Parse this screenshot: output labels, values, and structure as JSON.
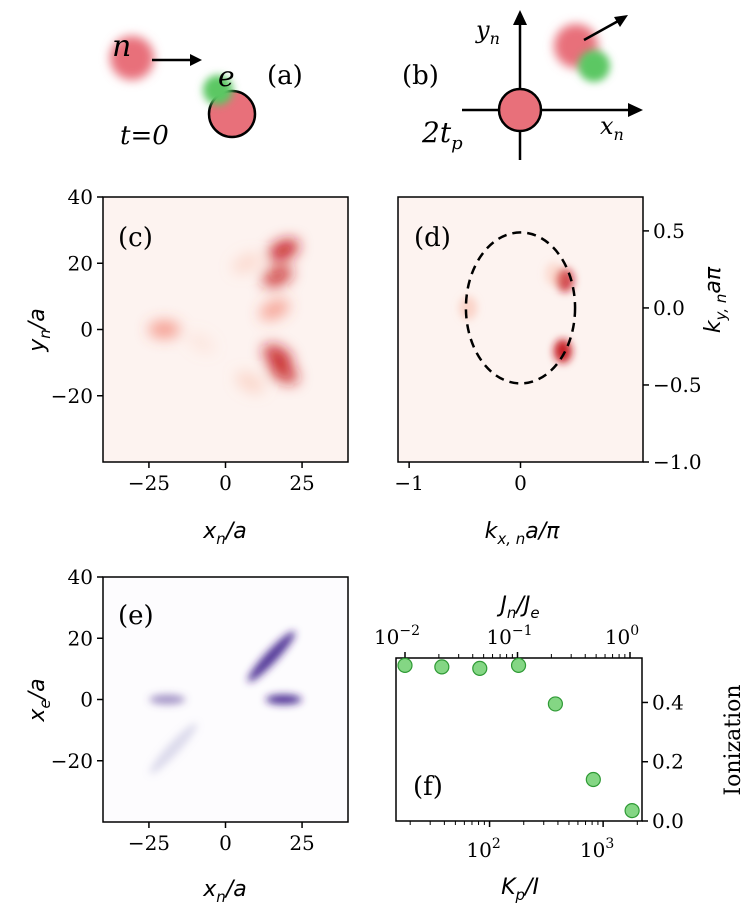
{
  "chart_data": [
    {
      "panel": "a",
      "type": "schematic",
      "panel_label": "(a)",
      "labels": {
        "neutron": "n",
        "electron": "e",
        "time": "t=0"
      },
      "colors": {
        "neutron": "#e8707a",
        "electron": "#5cc763",
        "outline": "#000000"
      }
    },
    {
      "panel": "b",
      "type": "schematic",
      "panel_label": "(b)",
      "labels": {
        "time": "2t",
        "time_sub": "p",
        "x_axis": "x",
        "x_sub": "n",
        "y_axis": "y",
        "y_sub": "n"
      },
      "colors": {
        "neutron": "#e8707a",
        "electron": "#5cc763"
      }
    },
    {
      "panel": "c",
      "type": "heatmap",
      "panel_label": "(c)",
      "xlabel": "x_n/a",
      "ylabel": "y_n/a",
      "xlim": [
        -40,
        40
      ],
      "ylim": [
        -40,
        40
      ],
      "xticks": [
        -25,
        0,
        25
      ],
      "xtick_labels": [
        "−25",
        "0",
        "25"
      ],
      "yticks": [
        -20,
        0,
        20,
        40
      ],
      "ytick_labels": [
        "−20",
        "0",
        "20",
        "40"
      ],
      "colormap": "Reds",
      "features": [
        {
          "x": 19,
          "y": 24,
          "intensity": 0.95
        },
        {
          "x": 17,
          "y": 16,
          "intensity": 0.8
        },
        {
          "x": 16,
          "y": 6,
          "intensity": 0.5
        },
        {
          "x": 17,
          "y": -8,
          "intensity": 0.9
        },
        {
          "x": 19,
          "y": -13,
          "intensity": 0.8
        },
        {
          "x": 8,
          "y": -16,
          "intensity": 0.35
        },
        {
          "x": -20,
          "y": 0,
          "intensity": 0.55
        },
        {
          "x": 7,
          "y": 20,
          "intensity": 0.3
        },
        {
          "x": -8,
          "y": -4,
          "intensity": 0.15
        }
      ]
    },
    {
      "panel": "d",
      "type": "heatmap",
      "panel_label": "(d)",
      "xlabel": "k_x,n a/π",
      "ylabel": "k_y,n aπ",
      "xlim": [
        -1.1,
        1.1
      ],
      "ylim": [
        -1.0,
        0.72
      ],
      "xticks": [
        -1,
        0
      ],
      "xtick_labels": [
        "−1",
        "0"
      ],
      "yticks": [
        0.5,
        0.0,
        -0.5,
        -1.0
      ],
      "ytick_labels": [
        "0.5",
        "0.0",
        "−0.5",
        "−1.0"
      ],
      "colormap": "Reds",
      "fermi_circle": {
        "center": [
          0,
          0
        ],
        "radius": 0.49,
        "style": "dashed"
      },
      "features": [
        {
          "x": 0.4,
          "y": 0.18,
          "intensity": 0.75
        },
        {
          "x": 0.38,
          "y": -0.28,
          "intensity": 0.95
        },
        {
          "x": -0.47,
          "y": 0.0,
          "intensity": 0.4
        },
        {
          "x": 0.3,
          "y": 0.22,
          "intensity": 0.3
        }
      ]
    },
    {
      "panel": "e",
      "type": "heatmap",
      "panel_label": "(e)",
      "xlabel": "x_n/a",
      "ylabel": "x_e/a",
      "xlim": [
        -40,
        40
      ],
      "ylim": [
        -40,
        40
      ],
      "xticks": [
        -25,
        0,
        25
      ],
      "xtick_labels": [
        "−25",
        "0",
        "25"
      ],
      "yticks": [
        -20,
        0,
        20,
        40
      ],
      "ytick_labels": [
        "−20",
        "0",
        "20",
        "40"
      ],
      "colormap": "Purples",
      "features": [
        {
          "x": 15,
          "y": 14,
          "intensity": 0.9,
          "shape": "diagonal"
        },
        {
          "x": -17,
          "y": -16,
          "intensity": 0.35,
          "shape": "diagonal"
        },
        {
          "x": 19,
          "y": 0,
          "intensity": 0.9,
          "shape": "horizontal"
        },
        {
          "x": -19,
          "y": 0,
          "intensity": 0.6,
          "shape": "horizontal"
        }
      ]
    },
    {
      "panel": "f",
      "type": "scatter",
      "panel_label": "(f)",
      "xlabel": "K_p/I",
      "ylabel": "Ionization",
      "top_xlabel": "J_n/J_e",
      "xscale": "log",
      "xlim": [
        15,
        2200
      ],
      "ylim": [
        0.0,
        0.55
      ],
      "xticks": [
        100,
        1000
      ],
      "xtick_labels": [
        "10",
        "10"
      ],
      "xtick_exps": [
        "2",
        "3"
      ],
      "top_xticks": [
        0.01,
        0.1,
        1.0
      ],
      "top_xtick_labels": [
        "10",
        "10",
        "10"
      ],
      "top_xtick_exps": [
        "−2",
        "−1",
        "0"
      ],
      "yticks": [
        0.0,
        0.2,
        0.4
      ],
      "ytick_labels": [
        "0.0",
        "0.2",
        "0.4"
      ],
      "x": [
        18,
        38,
        82,
        180,
        380,
        820,
        1800
      ],
      "y": [
        0.525,
        0.52,
        0.515,
        0.525,
        0.395,
        0.14,
        0.035
      ],
      "marker_color": "#6fcf6f"
    }
  ]
}
